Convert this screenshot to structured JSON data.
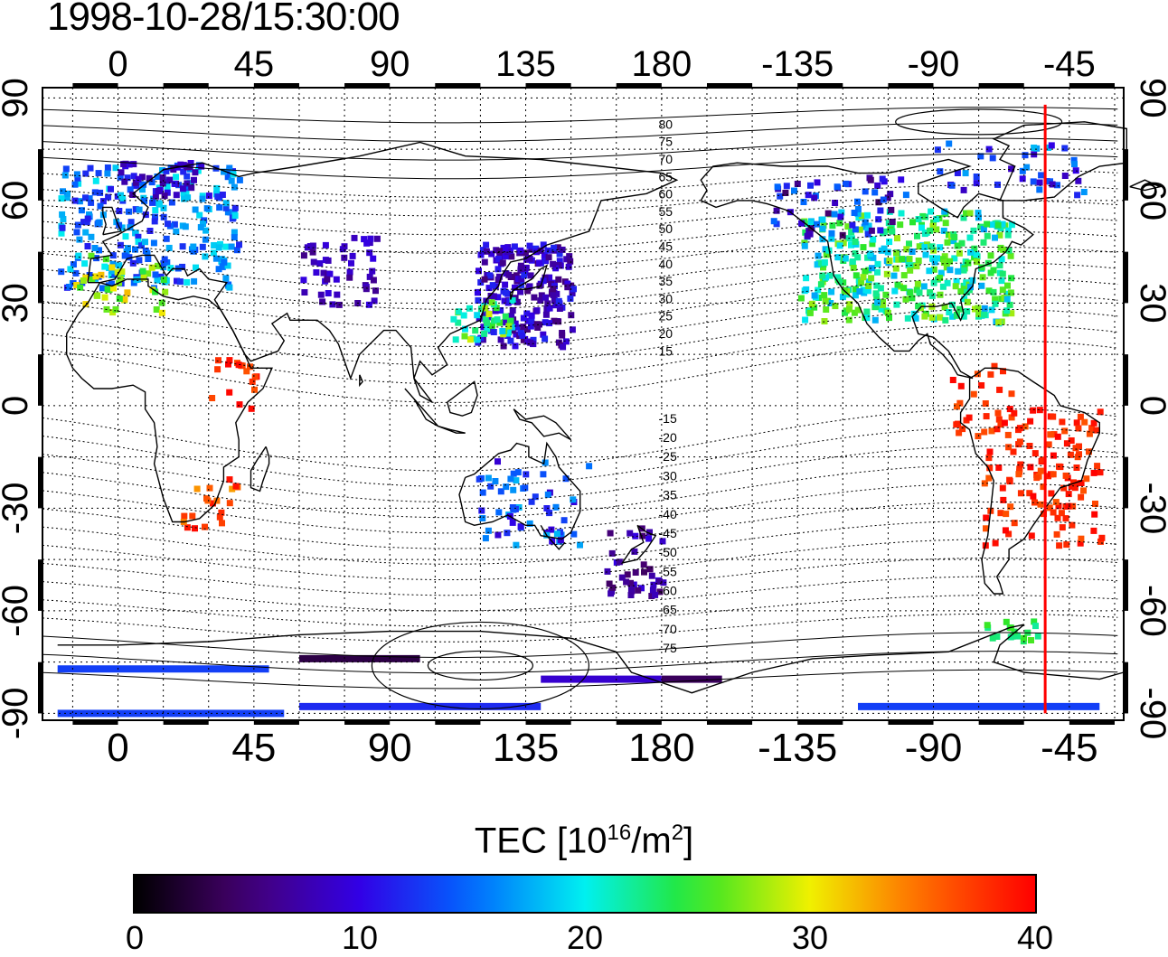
{
  "title": "1998-10-28/15:30:00",
  "map": {
    "lon_ticks_top": [
      "0",
      "45",
      "90",
      "135",
      "180",
      "-135",
      "-90",
      "-45"
    ],
    "lon_ticks_bottom": [
      "0",
      "45",
      "90",
      "135",
      "180",
      "-135",
      "-90",
      "-45"
    ],
    "lon_tick_values": [
      0,
      45,
      90,
      135,
      180,
      225,
      270,
      315
    ],
    "lat_ticks": [
      "90",
      "60",
      "30",
      "0",
      "-30",
      "-60",
      "-90"
    ],
    "lat_tick_values": [
      90,
      60,
      30,
      0,
      -30,
      -60,
      -90
    ],
    "lon_range": [
      -25,
      333
    ],
    "lat_range": [
      -92,
      93
    ],
    "grid": true,
    "red_line_lon": 307,
    "contour_labels_north": [
      "80",
      "75",
      "70",
      "65",
      "60",
      "55",
      "50",
      "45",
      "40",
      "35",
      "30",
      "25",
      "20",
      "15"
    ],
    "contour_labels_south": [
      "-15",
      "-20",
      "-25",
      "-30",
      "-35",
      "-40",
      "-45",
      "-50",
      "-55",
      "-60",
      "-65",
      "-70",
      "-75"
    ]
  },
  "colorbar": {
    "label_main": "TEC  [10",
    "label_exp": "16",
    "label_unit": "/m",
    "label_exp2": "2",
    "label_end": "]",
    "ticks": [
      "0",
      "10",
      "20",
      "30",
      "40"
    ],
    "tick_values": [
      0,
      10,
      20,
      30,
      40
    ],
    "range": [
      0,
      40
    ],
    "colormap": "jet (black-purple-blue-cyan-green-yellow-red)"
  },
  "tec_regions": [
    {
      "name": "europe",
      "tec": 16
    },
    {
      "name": "north-america",
      "tec": 22
    },
    {
      "name": "east-asia",
      "tec": 10
    },
    {
      "name": "south-america",
      "tec": 39
    },
    {
      "name": "australia",
      "tec": 14
    },
    {
      "name": "antarctica",
      "tec": 13
    }
  ]
}
